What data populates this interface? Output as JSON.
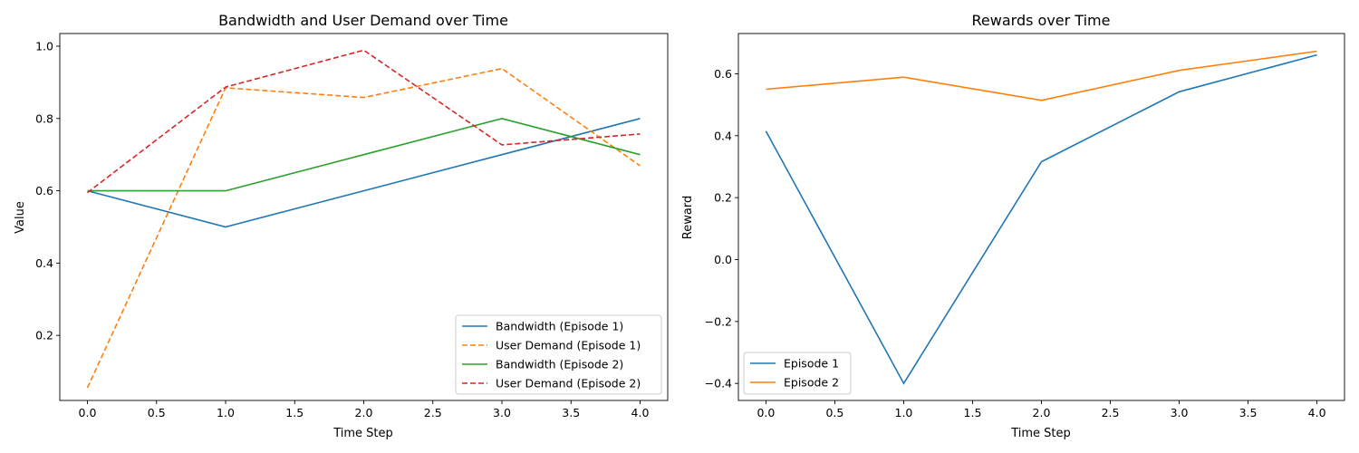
{
  "chart_data": [
    {
      "type": "line",
      "title": "Bandwidth and User Demand over Time",
      "xlabel": "Time Step",
      "ylabel": "Value",
      "xlim": [
        -0.2,
        4.2
      ],
      "ylim": [
        0.02,
        1.035
      ],
      "xticks": [
        "0.0",
        "0.5",
        "1.0",
        "1.5",
        "2.0",
        "2.5",
        "3.0",
        "3.5",
        "4.0"
      ],
      "xtick_values": [
        0,
        0.5,
        1,
        1.5,
        2,
        2.5,
        3,
        3.5,
        4
      ],
      "yticks": [
        "0.2",
        "0.4",
        "0.6",
        "0.8",
        "1.0"
      ],
      "ytick_values": [
        0.2,
        0.4,
        0.6,
        0.8,
        1.0
      ],
      "x": [
        0,
        1,
        2,
        3,
        4
      ],
      "legend": "lower right",
      "grid": false,
      "series": [
        {
          "name": "Bandwidth (Episode 1)",
          "color": "#1f77b4",
          "dash": "solid",
          "values": [
            0.6,
            0.5,
            0.6,
            0.7,
            0.8
          ]
        },
        {
          "name": "User Demand (Episode 1)",
          "color": "#ff7f0e",
          "dash": "dashed",
          "values": [
            0.055,
            0.885,
            0.858,
            0.938,
            0.669
          ]
        },
        {
          "name": "Bandwidth (Episode 2)",
          "color": "#2ca02c",
          "dash": "solid",
          "values": [
            0.6,
            0.6,
            0.7,
            0.8,
            0.7
          ]
        },
        {
          "name": "User Demand (Episode 2)",
          "color": "#d62728",
          "dash": "dashed",
          "values": [
            0.595,
            0.887,
            0.989,
            0.727,
            0.757
          ]
        }
      ]
    },
    {
      "type": "line",
      "title": "Rewards over Time",
      "xlabel": "Time Step",
      "ylabel": "Reward",
      "xlim": [
        -0.2,
        4.2
      ],
      "ylim": [
        -0.455,
        0.73
      ],
      "xticks": [
        "0.0",
        "0.5",
        "1.0",
        "1.5",
        "2.0",
        "2.5",
        "3.0",
        "3.5",
        "4.0"
      ],
      "xtick_values": [
        0,
        0.5,
        1,
        1.5,
        2,
        2.5,
        3,
        3.5,
        4
      ],
      "yticks": [
        "−0.4",
        "−0.2",
        "0.0",
        "0.2",
        "0.4",
        "0.6"
      ],
      "ytick_values": [
        -0.4,
        -0.2,
        0,
        0.2,
        0.4,
        0.6
      ],
      "x": [
        0,
        1,
        2,
        3,
        4
      ],
      "legend": "lower left",
      "grid": false,
      "series": [
        {
          "name": "Episode 1",
          "color": "#1f77b4",
          "dash": "solid",
          "values": [
            0.415,
            -0.4,
            0.316,
            0.542,
            0.661
          ]
        },
        {
          "name": "Episode 2",
          "color": "#ff7f0e",
          "dash": "solid",
          "values": [
            0.55,
            0.589,
            0.514,
            0.611,
            0.673
          ]
        }
      ]
    }
  ]
}
